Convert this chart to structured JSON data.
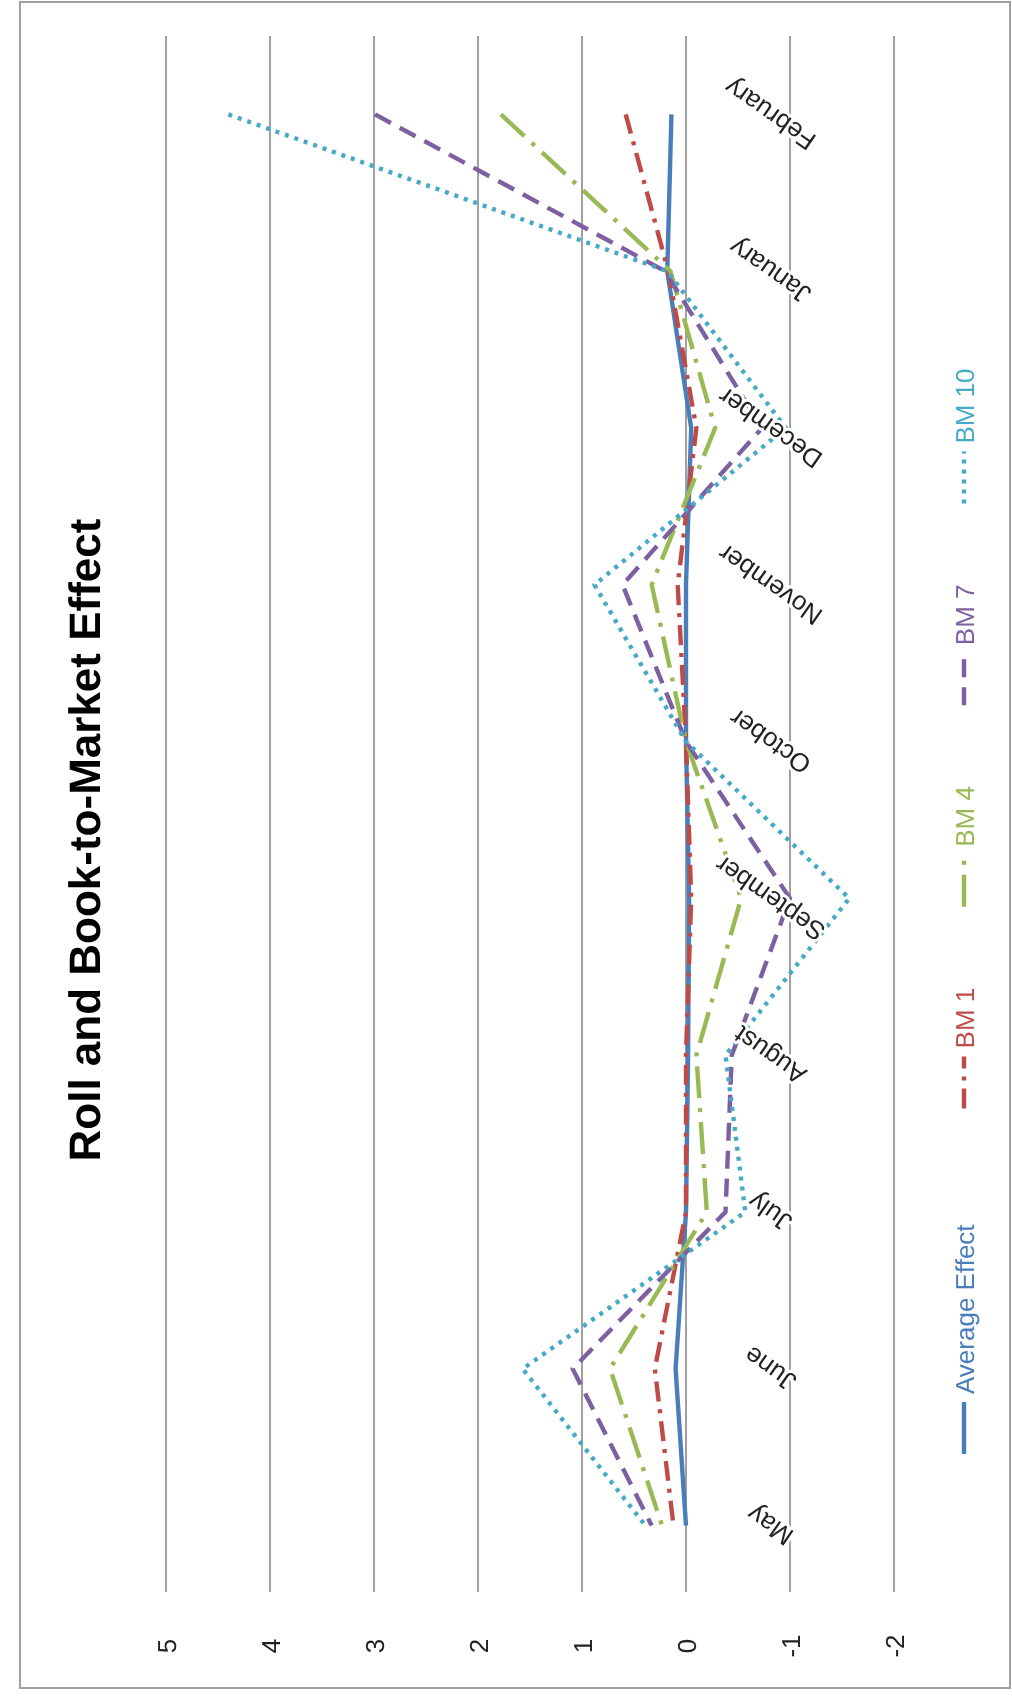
{
  "chart_data": {
    "type": "line",
    "title": "Roll and Book-to-Market Effect",
    "orientation": "horizontal",
    "categories": [
      "February",
      "January",
      "December",
      "November",
      "October",
      "September",
      "August",
      "July",
      "June",
      "May"
    ],
    "xlim": [
      5,
      -2
    ],
    "xticks": [
      5,
      4,
      3,
      2,
      1,
      0,
      -1,
      -2
    ],
    "grid": "x",
    "legend": "right",
    "series": [
      {
        "name": "Average Effect",
        "color": "#4a7ebb",
        "line_style": "solid",
        "values": [
          0.14,
          0.18,
          -0.05,
          0,
          0,
          -0.03,
          -0.02,
          0,
          0.1,
          0
        ]
      },
      {
        "name": "BM 1",
        "color": "#be4b48",
        "line_style": "dashdot",
        "values": [
          0.58,
          0.17,
          -0.1,
          0.08,
          0,
          -0.05,
          0,
          0,
          0.3,
          0.12
        ]
      },
      {
        "name": "BM 4",
        "color": "#98b954",
        "line_style": "longdashdot",
        "values": [
          1.78,
          0.15,
          -0.28,
          0.33,
          0,
          -0.53,
          -0.1,
          -0.2,
          0.73,
          0.23
        ]
      },
      {
        "name": "BM 7",
        "color": "#7d60a0",
        "line_style": "dashed",
        "values": [
          2.99,
          0.2,
          -0.73,
          0.61,
          0,
          -1.0,
          -0.44,
          -0.38,
          1.09,
          0.33
        ]
      },
      {
        "name": "BM 10",
        "color": "#46aac5",
        "line_style": "dotted",
        "values": [
          4.4,
          0.18,
          -0.96,
          0.88,
          0,
          -1.57,
          -0.38,
          -0.57,
          1.57,
          0.39
        ]
      }
    ]
  }
}
